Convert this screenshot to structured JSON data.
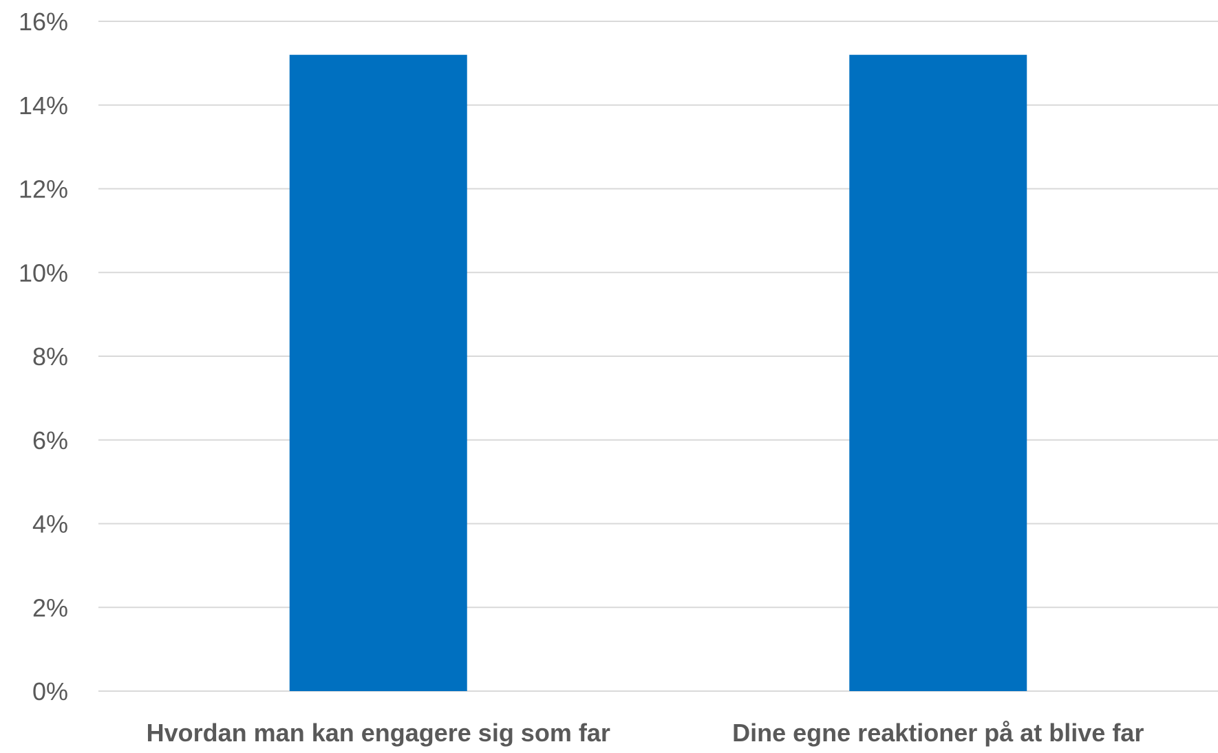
{
  "chart_data": {
    "type": "bar",
    "categories": [
      "Hvordan man kan engagere sig som far",
      "Dine egne reaktioner på at blive far"
    ],
    "values": [
      15.2,
      15.2
    ],
    "ylim": [
      0,
      16
    ],
    "yticks": [
      "0%",
      "2%",
      "4%",
      "6%",
      "8%",
      "10%",
      "12%",
      "14%",
      "16%"
    ],
    "ytick_values": [
      0,
      2,
      4,
      6,
      8,
      10,
      12,
      14,
      16
    ],
    "grid": true,
    "bar_color": "#0070C0",
    "title": "",
    "xlabel": "",
    "ylabel": ""
  }
}
